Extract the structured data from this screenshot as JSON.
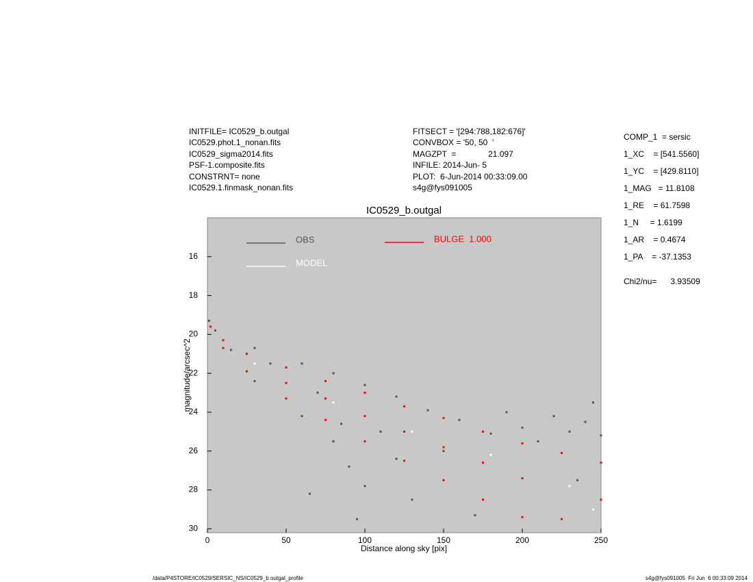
{
  "header": {
    "left": [
      "INITFILE= IC0529_b.outgal",
      "IC0529.phot.1_nonan.fits",
      "IC0529_sigma2014.fits",
      "PSF-1.composite.fits",
      "CONSTRNT= none",
      "IC0529.1.finmask_nonan.fits"
    ],
    "middle": [
      "FITSECT = '[294:788,182:676]'",
      "CONVBOX = '50, 50  '",
      "MAGZPT  =              21.097",
      "INFILE: 2014-Jun- 5",
      "PLOT:  6-Jun-2014 00:33:09.00",
      "s4g@fys091005"
    ],
    "right": [
      "COMP_1  = sersic",
      "1_XC    = [541.5560]",
      "1_YC    = [429.8110]",
      "1_MAG   = 11.8108",
      "1_RE    = 61.7598",
      "1_N     = 1.6199",
      "1_AR    = 0.4674",
      "1_PA    = -37.1353"
    ],
    "chi2": "Chi2/nu=      3.93509"
  },
  "footer": {
    "left": "/data/P4STORE/IC0529/SERSIC_NS/IC0529_b.outgal_profile",
    "right": "s4g@fys091005  Fri Jun  6 00:33:09 2014"
  },
  "chart_data": {
    "type": "scatter",
    "title": "IC0529_b.outgal",
    "x_label": "Distance along sky [pix]",
    "y_label": "magnitude/arcsec^2",
    "xlim": [
      0,
      250
    ],
    "xticks": [
      0,
      50,
      100,
      150,
      200,
      250
    ],
    "ylim": [
      30.2,
      14
    ],
    "yticks": [
      16,
      18,
      20,
      22,
      24,
      26,
      28,
      30
    ],
    "series": [
      {
        "name": "OBS",
        "color": "#555555",
        "x": [
          1,
          5,
          15,
          30,
          30,
          40,
          60,
          60,
          70,
          80,
          80,
          90,
          100,
          100,
          110,
          120,
          130,
          140,
          150,
          160,
          170,
          180,
          190,
          200,
          210,
          220,
          230,
          240,
          245,
          250,
          65,
          95,
          85,
          120,
          235
        ],
        "values": [
          19.3,
          19.8,
          20.8,
          20.7,
          22.4,
          21.5,
          21.5,
          24.2,
          23.0,
          22.0,
          25.5,
          26.8,
          22.6,
          27.8,
          25.0,
          23.2,
          28.5,
          23.9,
          26.0,
          24.4,
          29.3,
          25.1,
          24.0,
          24.8,
          25.5,
          24.2,
          25.0,
          24.5,
          23.5,
          25.2,
          28.2,
          29.5,
          24.6,
          26.4,
          27.5
        ]
      },
      {
        "name": "MODEL",
        "color": "#ffffff",
        "x": [
          30,
          80,
          130,
          180,
          230,
          245
        ],
        "values": [
          21.5,
          23.5,
          25.0,
          26.2,
          27.8,
          29.0
        ]
      },
      {
        "name": "BULGE  1.000",
        "color": "#ff0000",
        "x": [
          2,
          10,
          10,
          25,
          25,
          50,
          50,
          50,
          75,
          75,
          75,
          100,
          100,
          100,
          125,
          125,
          125,
          150,
          150,
          150,
          175,
          175,
          175,
          200,
          200,
          200,
          225,
          225,
          250,
          250
        ],
        "values": [
          19.6,
          20.3,
          20.7,
          21.0,
          21.9,
          21.7,
          23.3,
          22.5,
          22.4,
          24.4,
          23.3,
          23.0,
          25.5,
          24.2,
          23.7,
          26.5,
          25.0,
          24.3,
          27.5,
          25.8,
          25.0,
          28.5,
          26.6,
          25.6,
          29.4,
          27.4,
          26.1,
          29.5,
          26.6,
          28.5
        ]
      }
    ]
  }
}
